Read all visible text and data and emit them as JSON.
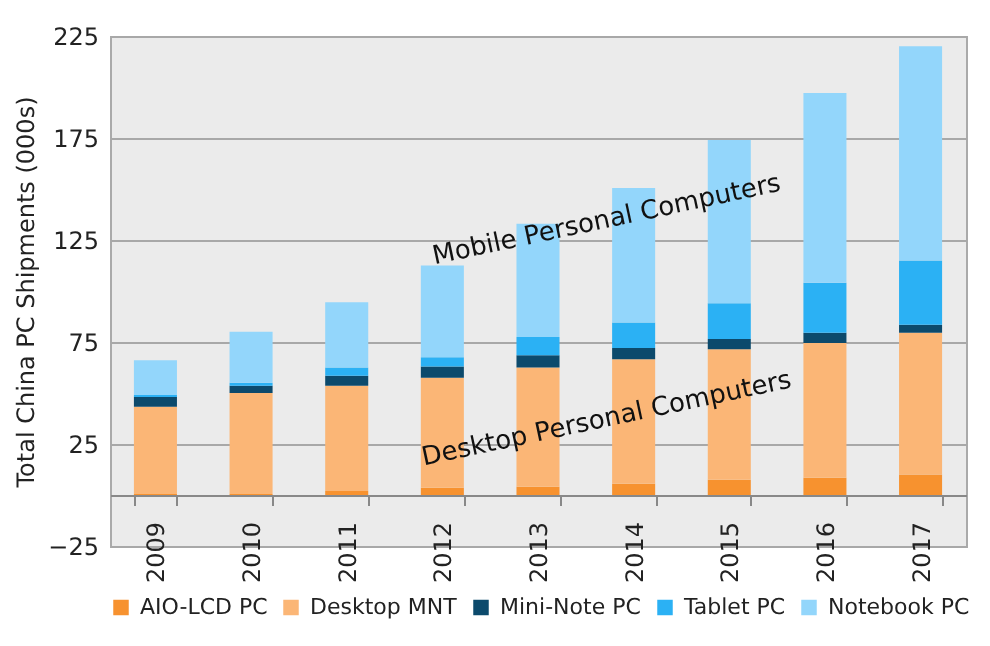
{
  "chart_data": {
    "type": "bar",
    "stacked": true,
    "ylabel": "Total China PC Shipments (000s)",
    "categories": [
      "2009",
      "2010",
      "2011",
      "2012",
      "2013",
      "2014",
      "2015",
      "2016",
      "2017"
    ],
    "series": [
      {
        "name": "AIO-LCD PC",
        "color": "#f7922f",
        "values": [
          0.5,
          0.5,
          2,
          3.5,
          4,
          5.5,
          7.5,
          8.5,
          10
        ]
      },
      {
        "name": "Desktop MNT",
        "color": "#fbb676",
        "values": [
          42.7,
          49.5,
          51.5,
          54,
          58.5,
          61,
          64,
          66,
          69.5
        ]
      },
      {
        "name": "Mini-Note PC",
        "color": "#0c4a6c",
        "values": [
          4.8,
          3.5,
          5,
          5.5,
          6,
          5.5,
          5,
          5,
          4
        ]
      },
      {
        "name": "Tablet PC",
        "color": "#2bb1f4",
        "values": [
          1,
          1.5,
          4,
          4.5,
          9,
          12.5,
          17.5,
          24.5,
          31.5
        ]
      },
      {
        "name": "Notebook PC",
        "color": "#93d6fb",
        "values": [
          17,
          25,
          32,
          45,
          55.5,
          66,
          80,
          93,
          105
        ]
      }
    ],
    "ylim": [
      -25,
      225
    ],
    "yticks": [
      -25,
      25,
      75,
      125,
      175,
      225
    ],
    "grid": "y",
    "legend": "bottom",
    "annotations": [
      "Mobile Personal Computers",
      "Desktop Personal Computers"
    ]
  }
}
